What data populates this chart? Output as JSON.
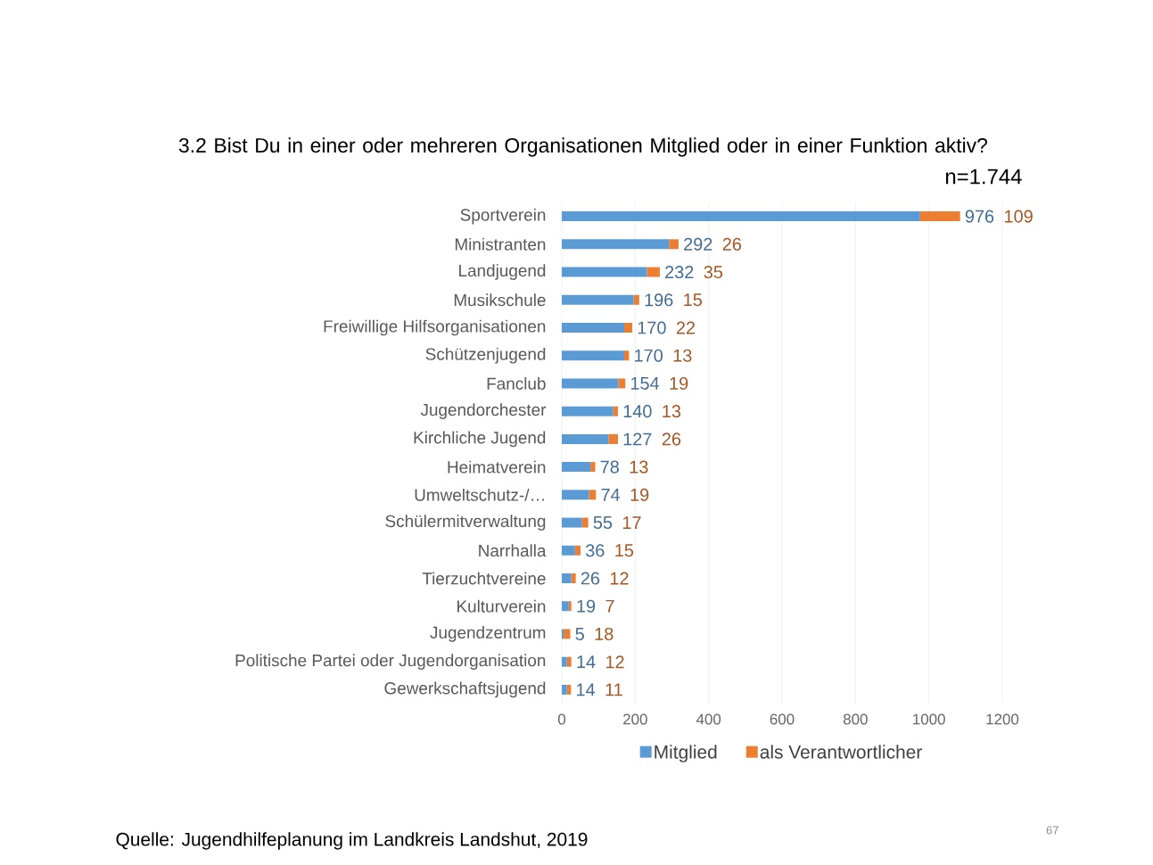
{
  "chart_data": {
    "type": "bar",
    "orientation": "horizontal",
    "stacked": true,
    "title": "3.2 Bist Du in einer oder mehreren Organisationen Mitglied oder in einer Funktion aktiv?",
    "subtitle": "n=1.744",
    "categories": [
      "Sportverein",
      "Ministranten",
      "Landjugend",
      "Musikschule",
      "Freiwillige Hilfsorganisationen",
      "Schützenjugend",
      "Fanclub",
      "Jugendorchester",
      "Kirchliche Jugend",
      "Heimatverein",
      "Umweltschutz-/…",
      "Schülermitverwaltung",
      "Narrhalla",
      "Tierzuchtvereine",
      "Kulturverein",
      "Jugendzentrum",
      "Politische Partei oder Jugendorganisation",
      "Gewerkschaftsjugend"
    ],
    "series": [
      {
        "name": "Mitglied",
        "color": "#5b9bd5",
        "values": [
          976,
          292,
          232,
          196,
          170,
          170,
          154,
          140,
          127,
          78,
          74,
          55,
          36,
          26,
          19,
          5,
          14,
          14
        ]
      },
      {
        "name": "als Verantwortlicher",
        "color": "#ed7d31",
        "values": [
          109,
          26,
          35,
          15,
          22,
          13,
          19,
          13,
          26,
          13,
          19,
          17,
          15,
          12,
          7,
          18,
          12,
          11
        ]
      }
    ],
    "xlim": [
      0,
      1200
    ],
    "xticks": [
      0,
      200,
      400,
      600,
      800,
      1000,
      1200
    ],
    "grid": "x",
    "legend": "bottom",
    "data_labels": true,
    "annotations": [
      "Quelle: Jugendhilfeplanung im Landkreis Landshut, 2019",
      "67"
    ]
  }
}
